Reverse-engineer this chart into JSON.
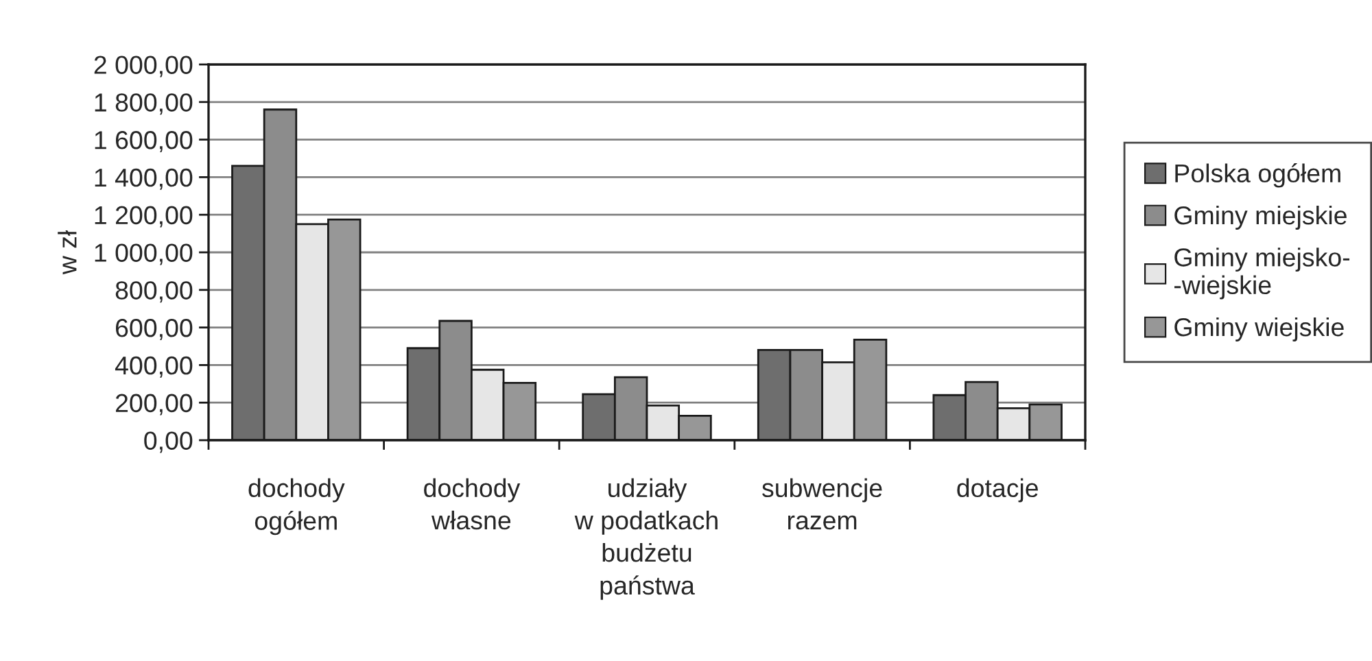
{
  "chart_data": {
    "type": "bar",
    "ylabel": "w zł",
    "categories": [
      "dochody\nogółem",
      "dochody\nwłasne",
      "udziały\nw podatkach\nbudżetu\npaństwa",
      "subwencje\nrazem",
      "dotacje"
    ],
    "series": [
      {
        "name": "Polska ogółem",
        "color": "#6e6e6e",
        "values": [
          1460,
          490,
          245,
          480,
          240
        ]
      },
      {
        "name": "Gminy miejskie",
        "color": "#8c8c8c",
        "values": [
          1760,
          635,
          335,
          480,
          310
        ]
      },
      {
        "name": "Gminy miejsko-\n-wiejskie",
        "color": "#e6e6e6",
        "values": [
          1150,
          375,
          185,
          415,
          170
        ]
      },
      {
        "name": "Gminy wiejskie",
        "color": "#979797",
        "values": [
          1175,
          305,
          130,
          535,
          190
        ]
      }
    ],
    "ylim": [
      0,
      2000
    ],
    "yticks": [
      {
        "value": 0,
        "label": "0,00"
      },
      {
        "value": 200,
        "label": "200,00"
      },
      {
        "value": 400,
        "label": "400,00"
      },
      {
        "value": 600,
        "label": "600,00"
      },
      {
        "value": 800,
        "label": "800,00"
      },
      {
        "value": 1000,
        "label": "1 000,00"
      },
      {
        "value": 1200,
        "label": "1 200,00"
      },
      {
        "value": 1400,
        "label": "1 400,00"
      },
      {
        "value": 1600,
        "label": "1 600,00"
      },
      {
        "value": 1800,
        "label": "1 800,00"
      },
      {
        "value": 2000,
        "label": "2 000,00"
      }
    ],
    "grid": "y",
    "legend": "right"
  }
}
